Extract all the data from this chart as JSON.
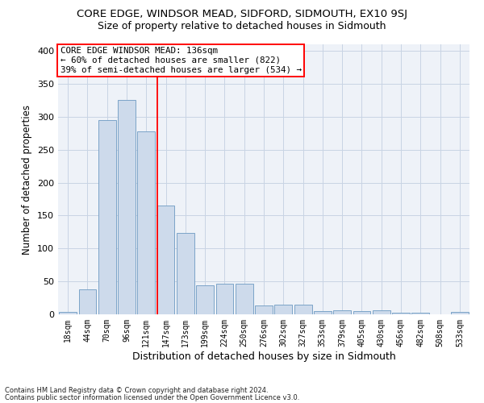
{
  "title": "CORE EDGE, WINDSOR MEAD, SIDFORD, SIDMOUTH, EX10 9SJ",
  "subtitle": "Size of property relative to detached houses in Sidmouth",
  "xlabel": "Distribution of detached houses by size in Sidmouth",
  "ylabel": "Number of detached properties",
  "bar_labels": [
    "18sqm",
    "44sqm",
    "70sqm",
    "96sqm",
    "121sqm",
    "147sqm",
    "173sqm",
    "199sqm",
    "224sqm",
    "250sqm",
    "276sqm",
    "302sqm",
    "327sqm",
    "353sqm",
    "379sqm",
    "405sqm",
    "430sqm",
    "456sqm",
    "482sqm",
    "508sqm",
    "533sqm"
  ],
  "bar_values": [
    4,
    38,
    295,
    325,
    278,
    165,
    124,
    44,
    46,
    46,
    14,
    15,
    15,
    5,
    6,
    5,
    6,
    3,
    2,
    0,
    4
  ],
  "bar_color": "#cddaeb",
  "bar_edge_color": "#7ba3c8",
  "vline_color": "red",
  "annotation_text": "CORE EDGE WINDSOR MEAD: 136sqm\n← 60% of detached houses are smaller (822)\n39% of semi-detached houses are larger (534) →",
  "annotation_box_color": "white",
  "annotation_box_edge": "red",
  "footnote1": "Contains HM Land Registry data © Crown copyright and database right 2024.",
  "footnote2": "Contains public sector information licensed under the Open Government Licence v3.0.",
  "ylim": [
    0,
    410
  ],
  "grid_color": "#c8d4e4",
  "bg_color": "#eef2f8",
  "title_fontsize": 9.5,
  "subtitle_fontsize": 9,
  "ylabel_fontsize": 8.5,
  "xlabel_fontsize": 9,
  "tick_fontsize": 7,
  "ytick_fontsize": 8,
  "annot_fontsize": 7.8,
  "footnote_fontsize": 6
}
